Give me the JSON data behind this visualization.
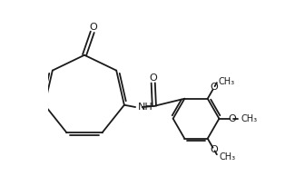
{
  "bg_color": "#ffffff",
  "line_color": "#1a1a1a",
  "lw": 1.3,
  "fs": 8.0,
  "fs_s": 7.0,
  "figsize": [
    3.36,
    2.16
  ],
  "dpi": 100,
  "xlim": [
    0.0,
    1.0
  ],
  "ylim": [
    0.05,
    0.98
  ]
}
